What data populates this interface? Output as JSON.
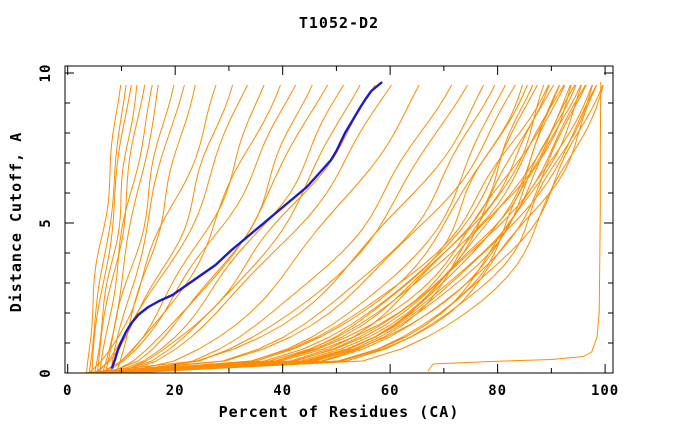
{
  "title": "T1052-D2",
  "chart_data": {
    "type": "line",
    "title": "T1052-D2",
    "xlabel": "Percent of Residues (CA)",
    "ylabel": "Distance Cutoff, A",
    "xlim": [
      0,
      100
    ],
    "ylim": [
      0,
      10
    ],
    "grid": false,
    "legend": "none",
    "x_major_ticks": [
      0,
      20,
      40,
      60,
      80,
      100
    ],
    "x_minor_ticks": [
      10,
      30,
      50,
      70,
      90
    ],
    "y_major_ticks": [
      0,
      5,
      10
    ],
    "y_minor_ticks": [
      1,
      2,
      3,
      4,
      6,
      7,
      8,
      9
    ],
    "tick_style": "inward-mirrored",
    "colors": {
      "model_curves": "#ff8c00",
      "highlight_curve": "#1a1ad0",
      "axis": "#000000",
      "background": "#ffffff"
    },
    "y_sample_max": 9.8,
    "highlight_series": {
      "name": "highlighted-model",
      "points": [
        [
          8.2,
          0.15
        ],
        [
          8.8,
          0.45
        ],
        [
          9.3,
          0.75
        ],
        [
          10.0,
          1.05
        ],
        [
          10.8,
          1.35
        ],
        [
          11.8,
          1.65
        ],
        [
          13.2,
          1.95
        ],
        [
          15.0,
          2.2
        ],
        [
          17.0,
          2.4
        ],
        [
          19.5,
          2.6
        ],
        [
          21.5,
          2.85
        ],
        [
          23.5,
          3.1
        ],
        [
          25.5,
          3.35
        ],
        [
          27.5,
          3.6
        ],
        [
          29.0,
          3.85
        ],
        [
          30.5,
          4.1
        ],
        [
          32.5,
          4.4
        ],
        [
          34.5,
          4.7
        ],
        [
          36.5,
          5.0
        ],
        [
          38.5,
          5.3
        ],
        [
          40.5,
          5.6
        ],
        [
          42.5,
          5.9
        ],
        [
          44.5,
          6.2
        ],
        [
          46.0,
          6.5
        ],
        [
          47.5,
          6.8
        ],
        [
          49.0,
          7.1
        ],
        [
          50.0,
          7.4
        ],
        [
          50.8,
          7.7
        ],
        [
          51.6,
          8.0
        ],
        [
          52.6,
          8.3
        ],
        [
          53.6,
          8.6
        ],
        [
          54.6,
          8.9
        ],
        [
          55.5,
          9.15
        ],
        [
          56.5,
          9.4
        ],
        [
          57.5,
          9.55
        ],
        [
          58.5,
          9.7
        ]
      ]
    },
    "near_native_series": {
      "name": "near-native-model",
      "points": [
        [
          67,
          0.05
        ],
        [
          68,
          0.3
        ],
        [
          78,
          0.38
        ],
        [
          90,
          0.45
        ],
        [
          96,
          0.55
        ],
        [
          97.5,
          0.7
        ],
        [
          98.5,
          1.2
        ],
        [
          98.9,
          2.0
        ],
        [
          99.0,
          3.5
        ],
        [
          99.1,
          5.5
        ],
        [
          99.1,
          7.5
        ],
        [
          99.2,
          9.7
        ]
      ]
    },
    "model_curves": {
      "note": "Unlabeled ensemble of model curves; each entry parameterizes x(y) = x0 + (xmax - x0) * (y / 9.8)^shape + amp*sin(freq*y + phase)*sin(pi*y/9.8), for y in Angstroms 0..9.8, x in percent.",
      "fields": [
        "x_at_cutoff0",
        "x_at_cutoff_max",
        "shape",
        "amp",
        "freq",
        "phase"
      ],
      "count": 55,
      "curves": [
        [
          3.5,
          10,
          1.1,
          0.5,
          1.3,
          0.5
        ],
        [
          4.0,
          11,
          1.0,
          0.4,
          1.1,
          2.1
        ],
        [
          4.5,
          12,
          1.15,
          0.6,
          0.9,
          4.0
        ],
        [
          5.0,
          13,
          0.95,
          0.5,
          1.4,
          1.2
        ],
        [
          5.5,
          14.5,
          1.05,
          0.7,
          1.0,
          3.3
        ],
        [
          6.0,
          16,
          1.1,
          0.5,
          1.2,
          5.1
        ],
        [
          6.5,
          17,
          0.9,
          0.6,
          0.8,
          0.9
        ],
        [
          7.0,
          20,
          1.0,
          0.8,
          1.1,
          2.7
        ],
        [
          8.0,
          22,
          1.1,
          0.7,
          0.9,
          4.6
        ],
        [
          9.0,
          24,
          0.95,
          0.6,
          1.3,
          1.8
        ],
        [
          4.0,
          28,
          0.75,
          1.2,
          1.0,
          0.4
        ],
        [
          5.0,
          31,
          0.7,
          1.0,
          1.2,
          2.2
        ],
        [
          5.5,
          34,
          0.8,
          1.4,
          0.8,
          3.9
        ],
        [
          6.0,
          37,
          0.65,
          1.1,
          1.1,
          1.5
        ],
        [
          6.5,
          40,
          0.7,
          1.3,
          0.9,
          5.0
        ],
        [
          7.0,
          43,
          0.75,
          1.0,
          1.2,
          0.8
        ],
        [
          7.5,
          46,
          0.6,
          1.5,
          1.0,
          2.9
        ],
        [
          8.0,
          49,
          0.7,
          1.2,
          0.8,
          4.4
        ],
        [
          8.5,
          52,
          0.65,
          1.4,
          1.1,
          1.0
        ],
        [
          9.0,
          55,
          0.6,
          1.1,
          0.9,
          3.6
        ],
        [
          9.5,
          58,
          0.7,
          1.3,
          1.2,
          5.5
        ],
        [
          10.0,
          61,
          0.65,
          1.2,
          1.0,
          2.0
        ],
        [
          10.0,
          66,
          0.55,
          1.3,
          0.9,
          0.6
        ],
        [
          11.0,
          72,
          0.5,
          1.2,
          1.1,
          2.8
        ],
        [
          9.0,
          75,
          0.45,
          1.4,
          0.8,
          4.9
        ],
        [
          3,
          78,
          0.4,
          1.5,
          0.9,
          0.7
        ],
        [
          4,
          80,
          0.35,
          1.2,
          1.1,
          2.4
        ],
        [
          5,
          82,
          0.3,
          1.6,
          0.8,
          4.1
        ],
        [
          6,
          84,
          0.38,
          1.3,
          1.0,
          1.1
        ],
        [
          7,
          85,
          0.28,
          1.4,
          1.2,
          3.0
        ],
        [
          8,
          86,
          0.33,
          1.2,
          0.9,
          5.2
        ],
        [
          4,
          87,
          0.25,
          1.5,
          1.1,
          1.7
        ],
        [
          5,
          88,
          0.3,
          1.3,
          0.8,
          3.8
        ],
        [
          6,
          89,
          0.22,
          1.4,
          1.0,
          0.3
        ],
        [
          7,
          90,
          0.35,
          1.2,
          1.2,
          2.6
        ],
        [
          8,
          90,
          0.27,
          1.5,
          0.9,
          4.8
        ],
        [
          9,
          91,
          0.32,
          1.3,
          1.1,
          1.4
        ],
        [
          5,
          92,
          0.24,
          1.4,
          0.8,
          3.2
        ],
        [
          6,
          92,
          0.3,
          1.2,
          1.0,
          5.4
        ],
        [
          7,
          93,
          0.26,
          1.5,
          1.2,
          0.9
        ],
        [
          8,
          93,
          0.33,
          1.3,
          0.9,
          2.8
        ],
        [
          9,
          94,
          0.22,
          1.4,
          1.1,
          4.5
        ],
        [
          10,
          94,
          0.29,
          1.2,
          0.8,
          1.2
        ],
        [
          6,
          95,
          0.25,
          1.5,
          1.0,
          3.5
        ],
        [
          7,
          95,
          0.31,
          1.3,
          1.2,
          5.7
        ],
        [
          8,
          96,
          0.23,
          1.4,
          0.9,
          0.6
        ],
        [
          9,
          96,
          0.28,
          1.2,
          1.1,
          2.3
        ],
        [
          10,
          97,
          0.26,
          1.5,
          0.8,
          4.2
        ],
        [
          11,
          97,
          0.32,
          1.3,
          1.0,
          1.6
        ],
        [
          7,
          98,
          0.22,
          1.4,
          1.2,
          3.4
        ],
        [
          8,
          98,
          0.27,
          1.2,
          0.9,
          5.6
        ],
        [
          9,
          99,
          0.24,
          1.5,
          1.1,
          0.2
        ],
        [
          10,
          99,
          0.3,
          1.3,
          0.8,
          2.5
        ],
        [
          11,
          100,
          0.22,
          1.4,
          1.0,
          4.7
        ],
        [
          12,
          100,
          0.26,
          1.2,
          1.2,
          1.9
        ]
      ]
    }
  }
}
